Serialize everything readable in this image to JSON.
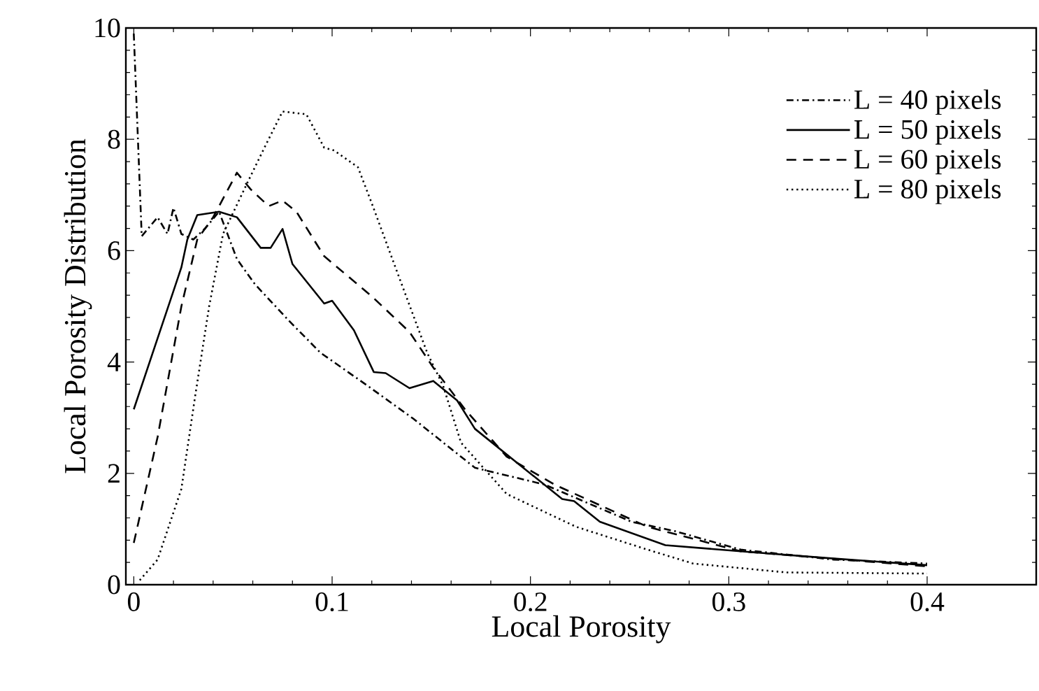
{
  "chart_data": {
    "type": "line",
    "xlabel": "Local Porosity",
    "ylabel": "Local Porosity Distribution",
    "xlim": [
      -0.004,
      0.455
    ],
    "ylim": [
      0,
      10
    ],
    "xticks": [
      0,
      0.1,
      0.2,
      0.3,
      0.4
    ],
    "yticks": [
      0,
      2,
      4,
      6,
      8,
      10
    ],
    "legend": "top right",
    "grid": false,
    "series": [
      {
        "name": "L = 40 pixels",
        "color": "#000000",
        "line_style": "dashdot",
        "x": [
          0,
          0.004,
          0.012,
          0.017,
          0.02,
          0.024,
          0.03,
          0.036,
          0.043,
          0.052,
          0.061,
          0.078,
          0.094,
          0.118,
          0.141,
          0.172,
          0.207,
          0.251,
          0.273,
          0.306,
          0.353,
          0.4
        ],
        "values": [
          9.9,
          6.26,
          6.6,
          6.3,
          6.77,
          6.3,
          6.2,
          6.4,
          6.7,
          5.85,
          5.4,
          4.75,
          4.17,
          3.57,
          2.98,
          2.1,
          1.8,
          1.13,
          0.96,
          0.63,
          0.45,
          0.38
        ]
      },
      {
        "name": "L = 50 pixels",
        "color": "#000000",
        "line_style": "solid",
        "x": [
          0,
          0.024,
          0.027,
          0.032,
          0.043,
          0.052,
          0.064,
          0.069,
          0.075,
          0.08,
          0.096,
          0.1,
          0.111,
          0.121,
          0.127,
          0.139,
          0.151,
          0.163,
          0.172,
          0.195,
          0.216,
          0.222,
          0.235,
          0.268,
          0.306,
          0.353,
          0.4
        ],
        "values": [
          3.15,
          5.7,
          6.2,
          6.64,
          6.7,
          6.6,
          6.05,
          6.05,
          6.39,
          5.76,
          5.05,
          5.1,
          4.57,
          3.82,
          3.8,
          3.53,
          3.66,
          3.31,
          2.8,
          2.14,
          1.54,
          1.5,
          1.13,
          0.71,
          0.6,
          0.47,
          0.35
        ]
      },
      {
        "name": "L = 60 pixels",
        "color": "#000000",
        "line_style": "dashed",
        "x": [
          0,
          0.012,
          0.024,
          0.032,
          0.04,
          0.052,
          0.059,
          0.068,
          0.075,
          0.082,
          0.096,
          0.12,
          0.139,
          0.151,
          0.167,
          0.188,
          0.212,
          0.259,
          0.306,
          0.4
        ],
        "values": [
          0.75,
          2.65,
          5.0,
          6.2,
          6.6,
          7.4,
          7.1,
          6.8,
          6.9,
          6.7,
          5.9,
          5.18,
          4.54,
          3.9,
          3.15,
          2.3,
          1.8,
          1.04,
          0.6,
          0.33
        ]
      },
      {
        "name": "L = 80 pixels",
        "color": "#000000",
        "line_style": "dotted",
        "x": [
          0.003,
          0.012,
          0.024,
          0.031,
          0.038,
          0.045,
          0.057,
          0.066,
          0.075,
          0.087,
          0.096,
          0.101,
          0.113,
          0.12,
          0.134,
          0.148,
          0.156,
          0.165,
          0.188,
          0.223,
          0.259,
          0.282,
          0.329,
          0.4
        ],
        "values": [
          0.08,
          0.45,
          1.72,
          3.4,
          5.0,
          6.3,
          7.2,
          7.86,
          8.5,
          8.45,
          7.85,
          7.8,
          7.5,
          6.85,
          5.5,
          4.16,
          3.57,
          2.55,
          1.63,
          1.04,
          0.63,
          0.38,
          0.22,
          0.2
        ]
      }
    ]
  }
}
